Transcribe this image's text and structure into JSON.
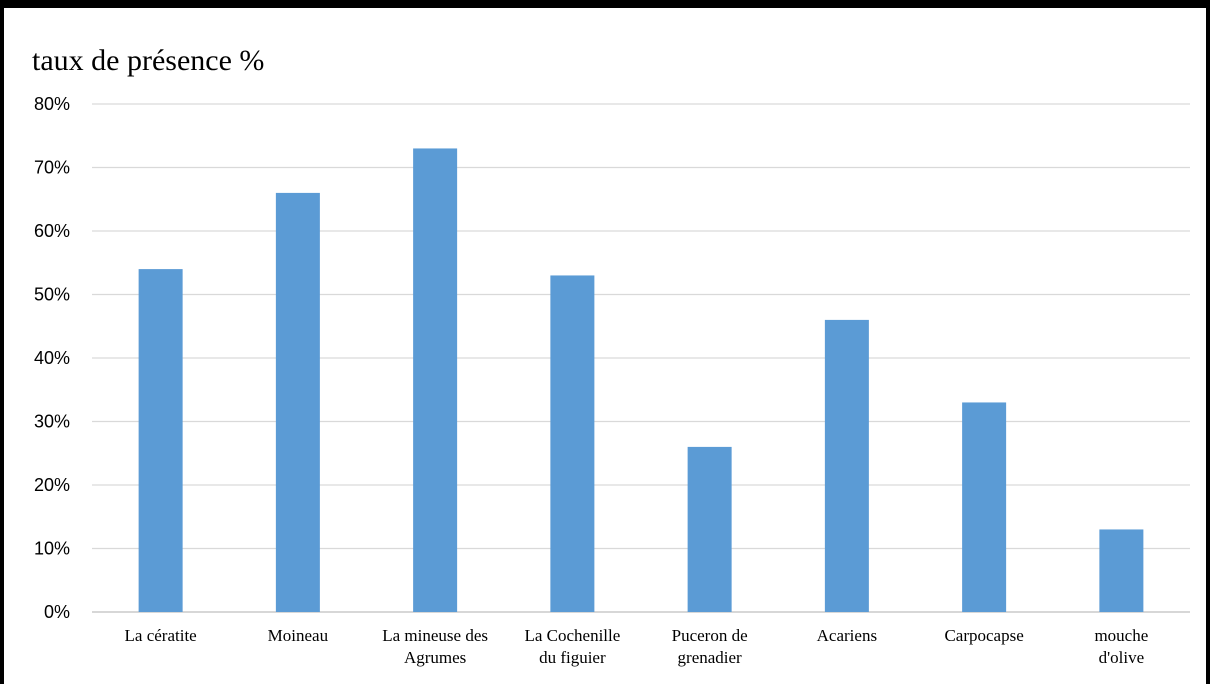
{
  "chart_data": {
    "type": "bar",
    "title": "taux de présence %",
    "xlabel": "",
    "ylabel": "",
    "categories": [
      "La cératite",
      "Moineau",
      "La mineuse des Agrumes",
      "La Cochenille du figuier",
      "Puceron de grenadier",
      "Acariens",
      "Carpocapse",
      "mouche d'olive"
    ],
    "category_lines": [
      [
        "La cératite"
      ],
      [
        "Moineau"
      ],
      [
        "La mineuse des",
        "Agrumes"
      ],
      [
        "La Cochenille",
        "du figuier"
      ],
      [
        "Puceron de",
        "grenadier"
      ],
      [
        "Acariens"
      ],
      [
        "Carpocapse"
      ],
      [
        "mouche",
        "d'olive"
      ]
    ],
    "values": [
      54,
      66,
      73,
      53,
      26,
      46,
      33,
      13
    ],
    "ylim": [
      0,
      80
    ],
    "yticks": [
      "0%",
      "10%",
      "20%",
      "30%",
      "40%",
      "50%",
      "60%",
      "70%",
      "80%"
    ],
    "grid": true,
    "legend": "none",
    "colors": {
      "bar": "#5b9bd5",
      "grid": "#d9d9d9",
      "axis": "#bfbfbf"
    }
  }
}
